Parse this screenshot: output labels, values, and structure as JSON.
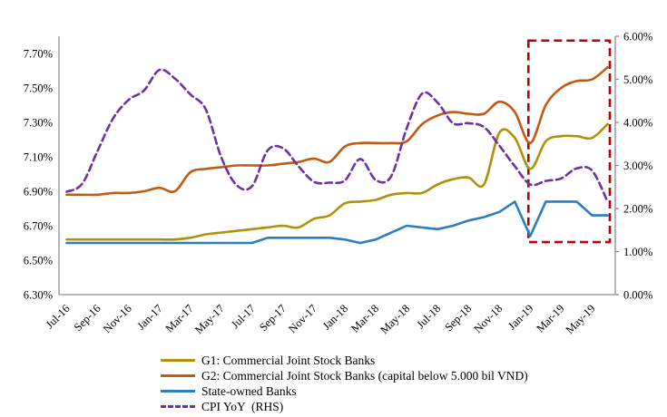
{
  "chart_data": {
    "type": "line",
    "x_categories": [
      "Jul-16",
      "Aug-16",
      "Sep-16",
      "Oct-16",
      "Nov-16",
      "Dec-16",
      "Jan-17",
      "Feb-17",
      "Mar-17",
      "Apr-17",
      "May-17",
      "Jun-17",
      "Jul-17",
      "Aug-17",
      "Sep-17",
      "Oct-17",
      "Nov-17",
      "Dec-17",
      "Jan-18",
      "Feb-18",
      "Mar-18",
      "Apr-18",
      "May-18",
      "Jun-18",
      "Jul-18",
      "Aug-18",
      "Sep-18",
      "Oct-18",
      "Nov-18",
      "Dec-18",
      "Jan-19",
      "Feb-19",
      "Mar-19",
      "Apr-19",
      "May-19",
      "Jun-19"
    ],
    "x_tick_every": 2,
    "series": [
      {
        "id": "g1",
        "name": "G1: Commercial Joint Stock Banks",
        "color": "#B19109",
        "axis": "left",
        "dash": "solid",
        "smooth": true,
        "values": [
          6.62,
          6.62,
          6.62,
          6.62,
          6.62,
          6.62,
          6.62,
          6.62,
          6.63,
          6.65,
          6.66,
          6.67,
          6.68,
          6.69,
          6.7,
          6.69,
          6.74,
          6.76,
          6.83,
          6.84,
          6.85,
          6.88,
          6.89,
          6.89,
          6.94,
          6.97,
          6.98,
          6.94,
          7.24,
          7.21,
          7.03,
          7.19,
          7.22,
          7.22,
          7.21,
          7.29
        ]
      },
      {
        "id": "g2",
        "name": "G2: Commercial Joint Stock Banks (capital below 5.000 bil VND)",
        "color": "#C45911",
        "axis": "left",
        "dash": "solid",
        "smooth": true,
        "values": [
          6.88,
          6.88,
          6.88,
          6.89,
          6.89,
          6.9,
          6.92,
          6.9,
          7.01,
          7.03,
          7.04,
          7.05,
          7.05,
          7.05,
          7.06,
          7.07,
          7.09,
          7.07,
          7.16,
          7.18,
          7.18,
          7.18,
          7.19,
          7.29,
          7.34,
          7.36,
          7.35,
          7.35,
          7.42,
          7.36,
          7.18,
          7.4,
          7.5,
          7.54,
          7.55,
          7.62
        ]
      },
      {
        "id": "state",
        "name": "State-owned Banks",
        "color": "#2C7CC0",
        "axis": "left",
        "dash": "solid",
        "smooth": false,
        "values": [
          6.6,
          6.6,
          6.6,
          6.6,
          6.6,
          6.6,
          6.6,
          6.6,
          6.6,
          6.6,
          6.6,
          6.6,
          6.6,
          6.63,
          6.63,
          6.63,
          6.63,
          6.63,
          6.62,
          6.6,
          6.62,
          6.66,
          6.7,
          6.69,
          6.68,
          6.7,
          6.73,
          6.75,
          6.78,
          6.84,
          6.64,
          6.84,
          6.84,
          6.84,
          6.76,
          6.76
        ]
      },
      {
        "id": "cpi",
        "name": "CPI YoY  (RHS)",
        "color": "#7030A0",
        "axis": "right",
        "dash": "dashed",
        "smooth": true,
        "values": [
          2.39,
          2.57,
          3.34,
          4.09,
          4.52,
          4.74,
          5.22,
          5.02,
          4.65,
          4.3,
          3.19,
          2.54,
          2.52,
          3.35,
          3.4,
          2.98,
          2.62,
          2.6,
          2.65,
          3.15,
          2.66,
          2.75,
          3.86,
          4.67,
          4.46,
          3.98,
          3.98,
          3.89,
          3.46,
          2.98,
          2.56,
          2.64,
          2.7,
          2.93,
          2.88,
          2.16
        ]
      }
    ],
    "left_axis": {
      "min": 6.3,
      "max": 7.8,
      "tick_values": [
        6.3,
        6.5,
        6.7,
        6.9,
        7.1,
        7.3,
        7.5,
        7.7
      ],
      "tick_labels": [
        "6.30%",
        "6.50%",
        "6.70%",
        "6.90%",
        "7.10%",
        "7.30%",
        "7.50%",
        "7.70%"
      ]
    },
    "right_axis": {
      "min": 0,
      "max": 6,
      "tick_values": [
        0,
        1,
        2,
        3,
        4,
        5,
        6
      ],
      "tick_labels": [
        "0.00%",
        "1.00%",
        "2.00%",
        "3.00%",
        "4.00%",
        "5.00%",
        "6.00%"
      ],
      "side_note": "RHS"
    },
    "highlight_box": {
      "from_month": "Jan-19",
      "to_month": "Jun-19",
      "right_axis_top": 5.9,
      "right_axis_bottom": 1.22,
      "color": "#C00000"
    },
    "grid": false,
    "legend_position": "bottom-left"
  }
}
